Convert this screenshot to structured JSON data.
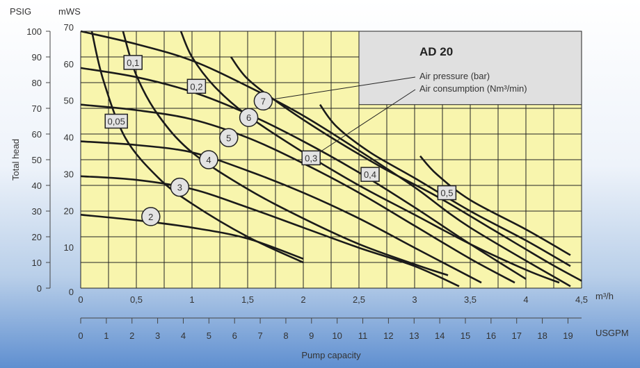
{
  "chart_data": {
    "type": "line",
    "title": "AD 20",
    "xlabel": "Pump capacity",
    "ylabel": "Total head",
    "x_unit": "m³/h",
    "x2_unit": "USGPM",
    "y_units": {
      "left": "PSIG",
      "right": "mWS"
    },
    "xlim": [
      0,
      4.5
    ],
    "ylim_mws": [
      0,
      70
    ],
    "x_ticks": [
      "0",
      "0,5",
      "1",
      "1,5",
      "2",
      "2,5",
      "3",
      "3,5",
      "4",
      "4,5"
    ],
    "x2_ticks": [
      "0",
      "1",
      "2",
      "3",
      "4",
      "5",
      "6",
      "7",
      "8",
      "9",
      "10",
      "11",
      "12",
      "13",
      "14",
      "15",
      "16",
      "17",
      "18",
      "19"
    ],
    "y_psig_ticks": [
      "0",
      "10",
      "20",
      "30",
      "40",
      "50",
      "60",
      "70",
      "80",
      "90",
      "100"
    ],
    "y_mws_ticks": [
      "0",
      "10",
      "20",
      "30",
      "40",
      "50",
      "60",
      "70"
    ],
    "legend": {
      "line1": "Air pressure (bar)",
      "line2": "Air consumption (Nm³/min)"
    },
    "series_pressure": [
      {
        "name": "2",
        "points": [
          [
            0,
            20
          ],
          [
            0.5,
            18.5
          ],
          [
            1,
            16.5
          ],
          [
            1.5,
            13.5
          ],
          [
            2,
            8
          ]
        ]
      },
      {
        "name": "3",
        "points": [
          [
            0,
            30.5
          ],
          [
            0.5,
            29.5
          ],
          [
            1,
            27
          ],
          [
            1.5,
            22
          ],
          [
            2,
            16.5
          ],
          [
            2.5,
            11
          ],
          [
            3,
            6
          ],
          [
            3.4,
            0.5
          ]
        ]
      },
      {
        "name": "4",
        "points": [
          [
            0,
            40
          ],
          [
            0.5,
            39
          ],
          [
            1,
            37
          ],
          [
            1.5,
            32
          ],
          [
            2,
            26
          ],
          [
            2.5,
            19
          ],
          [
            3,
            11
          ],
          [
            3.6,
            1.5
          ]
        ]
      },
      {
        "name": "5",
        "points": [
          [
            0,
            50
          ],
          [
            0.5,
            48.5
          ],
          [
            1,
            46
          ],
          [
            1.5,
            41
          ],
          [
            2,
            34
          ],
          [
            2.5,
            26
          ],
          [
            3,
            17
          ],
          [
            3.5,
            8
          ],
          [
            3.9,
            1.5
          ]
        ]
      },
      {
        "name": "6",
        "points": [
          [
            0,
            60
          ],
          [
            0.5,
            57.5
          ],
          [
            1,
            53.5
          ],
          [
            1.5,
            47.5
          ],
          [
            2,
            40
          ],
          [
            2.5,
            31.5
          ],
          [
            3,
            22
          ],
          [
            3.5,
            12
          ],
          [
            4,
            2.5
          ]
        ]
      },
      {
        "name": "7",
        "points": [
          [
            0,
            70
          ],
          [
            0.5,
            66.5
          ],
          [
            1,
            62
          ],
          [
            1.5,
            55
          ],
          [
            2,
            47
          ],
          [
            2.5,
            37.5
          ],
          [
            3,
            27.5
          ],
          [
            3.5,
            16.5
          ],
          [
            4.4,
            0.5
          ]
        ]
      }
    ],
    "series_consumption": [
      {
        "name": "0,05",
        "points": [
          [
            0.1,
            70
          ],
          [
            0.2,
            57
          ],
          [
            0.4,
            41
          ],
          [
            0.7,
            30
          ],
          [
            1,
            23
          ],
          [
            1.5,
            14
          ],
          [
            2,
            7
          ]
        ]
      },
      {
        "name": "0,1",
        "points": [
          [
            0.38,
            70
          ],
          [
            0.5,
            58
          ],
          [
            0.7,
            47
          ],
          [
            1,
            37
          ],
          [
            1.5,
            27
          ],
          [
            2,
            19
          ],
          [
            2.5,
            12
          ],
          [
            3,
            6.5
          ],
          [
            3.3,
            3.5
          ]
        ]
      },
      {
        "name": "0,2",
        "points": [
          [
            0.9,
            70
          ],
          [
            1,
            63
          ],
          [
            1.2,
            55
          ],
          [
            1.5,
            47
          ],
          [
            2,
            37
          ],
          [
            2.5,
            28
          ],
          [
            3,
            20
          ],
          [
            3.5,
            12
          ],
          [
            4,
            5
          ],
          [
            4.3,
            1.5
          ]
        ]
      },
      {
        "name": "0,3",
        "points": [
          [
            1.35,
            63
          ],
          [
            1.5,
            57
          ],
          [
            1.8,
            50
          ],
          [
            2.2,
            42
          ],
          [
            2.7,
            33
          ],
          [
            3.2,
            25
          ],
          [
            3.7,
            16
          ],
          [
            4.2,
            7
          ],
          [
            4.5,
            2
          ]
        ]
      },
      {
        "name": "0,4",
        "points": [
          [
            2.15,
            50
          ],
          [
            2.3,
            44
          ],
          [
            2.6,
            37
          ],
          [
            3,
            30
          ],
          [
            3.5,
            21
          ],
          [
            4,
            13
          ],
          [
            4.4,
            6
          ]
        ]
      },
      {
        "name": "0,5",
        "points": [
          [
            3.05,
            36
          ],
          [
            3.2,
            31
          ],
          [
            3.5,
            24
          ],
          [
            4,
            16
          ],
          [
            4.4,
            9
          ]
        ]
      }
    ],
    "labels_pressure": [
      {
        "text": "2",
        "at": [
          0.63,
          19.5
        ]
      },
      {
        "text": "3",
        "at": [
          0.89,
          27.5
        ]
      },
      {
        "text": "4",
        "at": [
          1.15,
          35
        ]
      },
      {
        "text": "5",
        "at": [
          1.33,
          41
        ]
      },
      {
        "text": "6",
        "at": [
          1.51,
          46.5
        ]
      },
      {
        "text": "7",
        "at": [
          1.64,
          51
        ]
      }
    ],
    "labels_consumption": [
      {
        "text": "0,05",
        "at": [
          0.32,
          45.5
        ]
      },
      {
        "text": "0,1",
        "at": [
          0.47,
          61.5
        ]
      },
      {
        "text": "0,2",
        "at": [
          1.04,
          55
        ]
      },
      {
        "text": "0,3",
        "at": [
          2.07,
          35.5
        ]
      },
      {
        "text": "0,4",
        "at": [
          2.6,
          31
        ]
      },
      {
        "text": "0,5",
        "at": [
          3.29,
          26
        ]
      }
    ],
    "colors": {
      "plot_bg": "#f8f5ad",
      "grid": "#222222",
      "curve": "#1a1a1a",
      "legend_box": "#e0e0e0",
      "badge": "#e3e3e3"
    }
  }
}
